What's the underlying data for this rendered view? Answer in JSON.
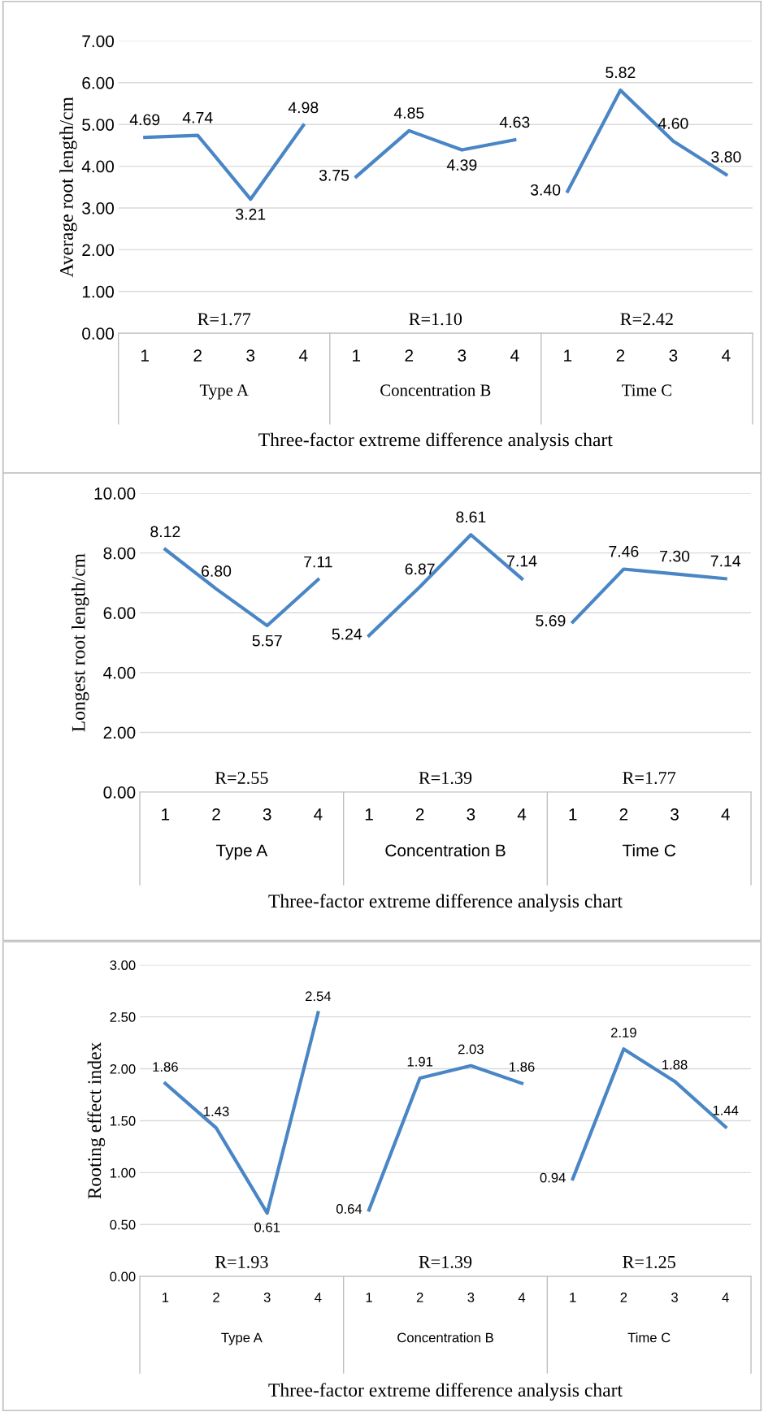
{
  "chart_data": [
    {
      "type": "line",
      "ylabel": "Average root length/cm",
      "xlabel": "Three-factor extreme difference analysis chart",
      "categories": [
        "1",
        "2",
        "3",
        "4",
        "1",
        "2",
        "3",
        "4",
        "1",
        "2",
        "3",
        "4"
      ],
      "annotations": [
        "R=1.77",
        "R=1.10",
        "R=2.42",
        "Type A",
        "Concentration B",
        "Time C"
      ],
      "ylim": [
        0,
        7
      ],
      "yticks": [
        {
          "value": 0,
          "label": "0.00"
        },
        {
          "value": 1,
          "label": "1.00"
        },
        {
          "value": 2,
          "label": "2.00"
        },
        {
          "value": 3,
          "label": "3.00"
        },
        {
          "value": 4,
          "label": "4.00"
        },
        {
          "value": 5,
          "label": "5.00"
        },
        {
          "value": 6,
          "label": "6.00"
        },
        {
          "value": 7,
          "label": "7.00"
        }
      ],
      "grid": "y",
      "marker": "none",
      "line_style": "solid",
      "series": [
        {
          "color": "#4a86c5",
          "values": [
            4.69,
            4.74,
            3.21,
            4.98,
            null,
            null,
            null,
            null,
            null,
            null,
            null,
            null
          ],
          "value_labels": [
            "4.69",
            "4.74",
            "3.21",
            "4.98",
            null,
            null,
            null,
            null,
            null,
            null,
            null,
            null
          ]
        },
        {
          "color": "#4a86c5",
          "values": [
            null,
            null,
            null,
            null,
            3.75,
            4.85,
            4.39,
            4.63,
            null,
            null,
            null,
            null
          ],
          "value_labels": [
            null,
            null,
            null,
            null,
            "3.75",
            "4.85",
            "4.39",
            "4.63",
            null,
            null,
            null,
            null
          ]
        },
        {
          "color": "#4a86c5",
          "values": [
            null,
            null,
            null,
            null,
            null,
            null,
            null,
            null,
            3.4,
            5.82,
            4.6,
            3.8
          ],
          "value_labels": [
            null,
            null,
            null,
            null,
            null,
            null,
            null,
            null,
            "3.40",
            "5.82",
            "4.60",
            "3.80"
          ]
        }
      ]
    },
    {
      "type": "line",
      "ylabel": "Longest root length/cm",
      "xlabel": "Three-factor extreme difference analysis chart",
      "categories": [
        "1",
        "2",
        "3",
        "4",
        "1",
        "2",
        "3",
        "4",
        "1",
        "2",
        "3",
        "4"
      ],
      "annotations": [
        "R=2.55",
        "R=1.39",
        "R=1.77",
        "Type A",
        "Concentration B",
        "Time C"
      ],
      "ylim": [
        0,
        10
      ],
      "yticks": [
        {
          "value": 0,
          "label": "0.00"
        },
        {
          "value": 2,
          "label": "2.00"
        },
        {
          "value": 4,
          "label": "4.00"
        },
        {
          "value": 6,
          "label": "6.00"
        },
        {
          "value": 8,
          "label": "8.00"
        },
        {
          "value": 10,
          "label": "10.00"
        }
      ],
      "grid": "y",
      "marker": "none",
      "line_style": "solid",
      "series": [
        {
          "color": "#4a86c5",
          "values": [
            8.12,
            6.8,
            5.57,
            7.11,
            null,
            null,
            null,
            null,
            null,
            null,
            null,
            null
          ],
          "value_labels": [
            "8.12",
            "6.80",
            "5.57",
            "7.11",
            null,
            null,
            null,
            null,
            null,
            null,
            null,
            null
          ]
        },
        {
          "color": "#4a86c5",
          "values": [
            null,
            null,
            null,
            null,
            5.24,
            6.87,
            8.61,
            7.14,
            null,
            null,
            null,
            null
          ],
          "value_labels": [
            null,
            null,
            null,
            null,
            "5.24",
            "6.87",
            "8.61",
            "7.14",
            null,
            null,
            null,
            null
          ]
        },
        {
          "color": "#4a86c5",
          "values": [
            null,
            null,
            null,
            null,
            null,
            null,
            null,
            null,
            5.69,
            7.46,
            7.3,
            7.14
          ],
          "value_labels": [
            null,
            null,
            null,
            null,
            null,
            null,
            null,
            null,
            "5.69",
            "7.46",
            "7.30",
            "7.14"
          ]
        }
      ]
    },
    {
      "type": "line",
      "ylabel": "Rooting effect index",
      "xlabel": "Three-factor extreme difference analysis chart",
      "categories": [
        "1",
        "2",
        "3",
        "4",
        "1",
        "2",
        "3",
        "4",
        "1",
        "2",
        "3",
        "4"
      ],
      "annotations": [
        "R=1.93",
        "R=1.39",
        "R=1.25",
        "Type A",
        "Concentration B",
        "Time C"
      ],
      "ylim": [
        0,
        3
      ],
      "yticks": [
        {
          "value": 0,
          "label": "0.00"
        },
        {
          "value": 0.5,
          "label": "0.50"
        },
        {
          "value": 1,
          "label": "1.00"
        },
        {
          "value": 1.5,
          "label": "1.50"
        },
        {
          "value": 2,
          "label": "2.00"
        },
        {
          "value": 2.5,
          "label": "2.50"
        },
        {
          "value": 3,
          "label": "3.00"
        }
      ],
      "grid": "y",
      "marker": "none",
      "line_style": "solid",
      "series": [
        {
          "color": "#4a86c5",
          "values": [
            1.86,
            1.43,
            0.61,
            2.54,
            null,
            null,
            null,
            null,
            null,
            null,
            null,
            null
          ],
          "value_labels": [
            "1.86",
            "1.43",
            "0.61",
            "2.54",
            null,
            null,
            null,
            null,
            null,
            null,
            null,
            null
          ]
        },
        {
          "color": "#4a86c5",
          "values": [
            null,
            null,
            null,
            null,
            0.64,
            1.91,
            2.03,
            1.86,
            null,
            null,
            null,
            null
          ],
          "value_labels": [
            null,
            null,
            null,
            null,
            "0.64",
            "1.91",
            "2.03",
            "1.86",
            null,
            null,
            null,
            null
          ]
        },
        {
          "color": "#4a86c5",
          "values": [
            null,
            null,
            null,
            null,
            null,
            null,
            null,
            null,
            0.94,
            2.19,
            1.88,
            1.44
          ],
          "value_labels": [
            null,
            null,
            null,
            null,
            null,
            null,
            null,
            null,
            "0.94",
            "2.19",
            "1.88",
            "1.44"
          ]
        }
      ]
    }
  ]
}
